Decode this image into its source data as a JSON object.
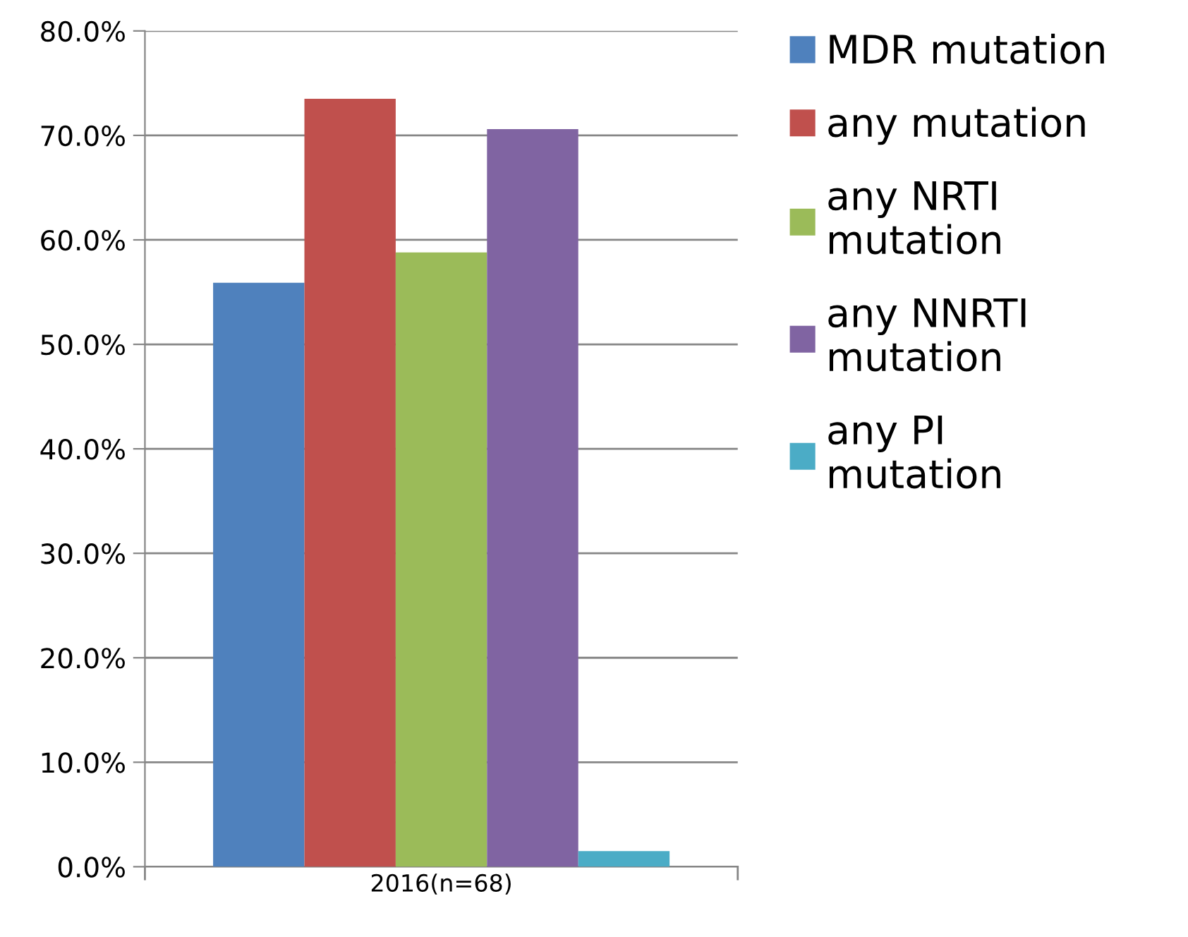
{
  "chart_data": {
    "type": "bar",
    "categories": [
      "2016(n=68)"
    ],
    "series": [
      {
        "name": "MDR mutation",
        "color": "#4f81bd",
        "values": [
          55.9
        ]
      },
      {
        "name": "any mutation",
        "color": "#c0504d",
        "values": [
          73.5
        ]
      },
      {
        "name": "any NRTI mutation",
        "color": "#9bbb59",
        "values": [
          58.8
        ]
      },
      {
        "name": "any NNRTI mutation",
        "color": "#8064a2",
        "values": [
          70.6
        ]
      },
      {
        "name": "any PI mutation",
        "color": "#4bacc6",
        "values": [
          1.5
        ]
      }
    ],
    "ylim": [
      0,
      80
    ],
    "yticks": [
      {
        "value": 0,
        "label": "0.0%"
      },
      {
        "value": 10,
        "label": "10.0%"
      },
      {
        "value": 20,
        "label": "20.0%"
      },
      {
        "value": 30,
        "label": "30.0%"
      },
      {
        "value": 40,
        "label": "40.0%"
      },
      {
        "value": 50,
        "label": "50.0%"
      },
      {
        "value": 60,
        "label": "60.0%"
      },
      {
        "value": 70,
        "label": "70.0%"
      },
      {
        "value": 80,
        "label": "80.0%"
      }
    ],
    "grid": "y",
    "legend": "right"
  }
}
